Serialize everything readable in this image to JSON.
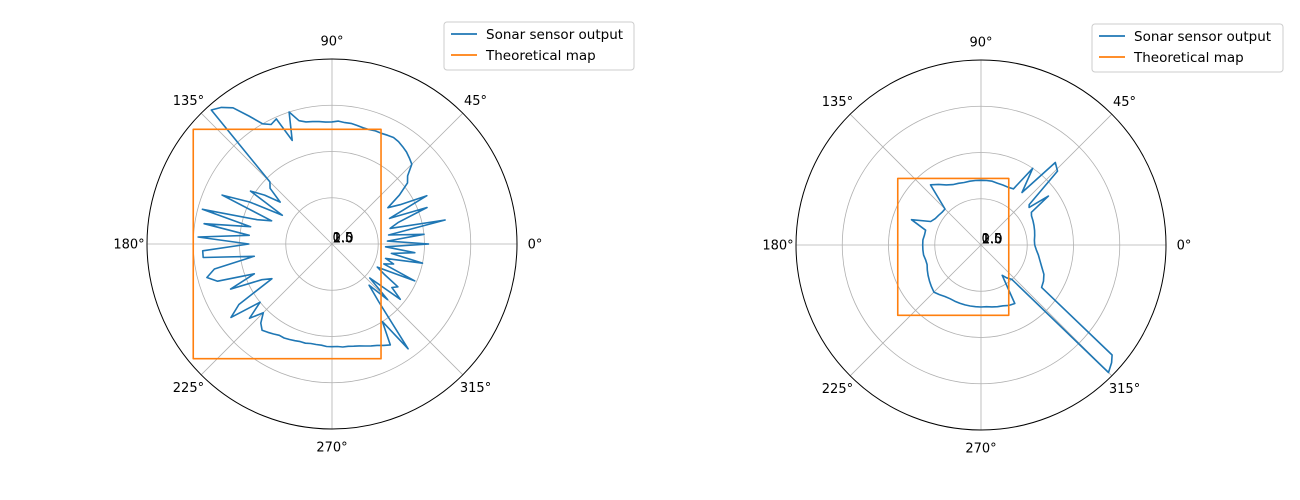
{
  "chart_data": [
    {
      "type": "polar-line",
      "title": "",
      "angle_ticks": [
        "0°",
        "45°",
        "90°",
        "135°",
        "180°",
        "225°",
        "270°",
        "315°"
      ],
      "angle_tick_degrees": [
        0,
        45,
        90,
        135,
        180,
        225,
        270,
        315
      ],
      "radial_tick_labels": [
        "0.5",
        "1.0",
        "1.5",
        "2.0"
      ],
      "rlim": [
        0,
        2.0
      ],
      "grid": true,
      "legend": "top-right",
      "series": [
        {
          "name": "Sonar sensor output",
          "color": "#1f77b4",
          "theta_deg": [
            0,
            3,
            6,
            9,
            12,
            15,
            18,
            21,
            24,
            27,
            30,
            33,
            36,
            39,
            42,
            45,
            48,
            51,
            54,
            57,
            60,
            63,
            66,
            69,
            72,
            75,
            78,
            81,
            84,
            87,
            90,
            93,
            96,
            99,
            102,
            105,
            108,
            111,
            114,
            117,
            120,
            123,
            126,
            129,
            132,
            135,
            138,
            141,
            144,
            147,
            150,
            153,
            156,
            159,
            162,
            165,
            168,
            171,
            174,
            177,
            180,
            183,
            186,
            189,
            192,
            195,
            198,
            201,
            204,
            207,
            210,
            213,
            216,
            219,
            222,
            225,
            228,
            231,
            234,
            237,
            240,
            243,
            246,
            249,
            252,
            255,
            258,
            261,
            264,
            267,
            270,
            273,
            276,
            279,
            282,
            285,
            288,
            291,
            294,
            297,
            300,
            303,
            306,
            309,
            312,
            315,
            318,
            321,
            324,
            327,
            330,
            333,
            336,
            339,
            342,
            345,
            348,
            351,
            354,
            357,
            360
          ],
          "r": [
            1.05,
            0.6,
            1.0,
            0.62,
            1.25,
            0.65,
            0.75,
            1.1,
            0.68,
            1.15,
            0.85,
            0.72,
            0.9,
            1.05,
            1.1,
            1.22,
            1.25,
            1.28,
            1.3,
            1.32,
            1.33,
            1.32,
            1.31,
            1.31,
            1.3,
            1.3,
            1.31,
            1.32,
            1.32,
            1.33,
            1.32,
            1.32,
            1.33,
            1.34,
            1.35,
            1.38,
            1.5,
            1.2,
            1.48,
            1.45,
            1.5,
            1.65,
            1.82,
            1.9,
            1.95,
            0.95,
            0.9,
            0.72,
            0.9,
            1.05,
            0.62,
            1.0,
            1.3,
            0.7,
            0.85,
            1.45,
            0.9,
            1.4,
            0.9,
            1.45,
            0.9,
            1.4,
            1.4,
            0.85,
            1.3,
            1.4,
            1.3,
            0.9,
            1.2,
            0.85,
            0.75,
            1.2,
            1.35,
            1.0,
            1.2,
            1.05,
            1.15,
            1.2,
            1.18,
            1.16,
            1.14,
            1.14,
            1.13,
            1.12,
            1.11,
            1.11,
            1.1,
            1.1,
            1.1,
            1.11,
            1.11,
            1.11,
            1.12,
            1.12,
            1.13,
            1.14,
            1.16,
            1.18,
            1.2,
            1.23,
            1.26,
            1.0,
            1.4,
            0.8,
            0.6,
            0.85,
            0.55,
            0.95,
            0.8,
            0.85,
            0.65,
            0.55,
            0.98,
            0.6,
            0.7,
            0.6,
            1.0,
            0.65,
            0.9,
            0.58,
            1.05
          ]
        },
        {
          "name": "Theoretical map",
          "color": "#ff7f0e",
          "rect": {
            "x_min": -1.5,
            "x_max": 0.53,
            "y_min": -1.24,
            "y_max": 1.24
          }
        }
      ]
    },
    {
      "type": "polar-line",
      "title": "",
      "angle_ticks": [
        "0°",
        "45°",
        "90°",
        "135°",
        "180°",
        "225°",
        "270°",
        "315°"
      ],
      "angle_tick_degrees": [
        0,
        45,
        90,
        135,
        180,
        225,
        270,
        315
      ],
      "radial_tick_labels": [
        "0.5",
        "1.0",
        "1.5",
        "2.0"
      ],
      "rlim": [
        0,
        2.0
      ],
      "grid": true,
      "legend": "top-right",
      "series": [
        {
          "name": "Sonar sensor output",
          "color": "#1f77b4",
          "theta_deg": [
            0,
            5,
            10,
            15,
            20,
            25,
            30,
            33,
            36,
            38,
            40,
            44,
            48,
            52,
            56,
            60,
            65,
            70,
            75,
            80,
            85,
            90,
            95,
            100,
            105,
            110,
            115,
            120,
            125,
            130,
            135,
            140,
            145,
            150,
            155,
            160,
            165,
            170,
            175,
            180,
            185,
            190,
            195,
            200,
            205,
            210,
            215,
            220,
            225,
            230,
            235,
            240,
            245,
            250,
            255,
            260,
            265,
            270,
            275,
            280,
            285,
            290,
            295,
            300,
            305,
            308,
            312,
            315,
            318,
            320,
            325,
            330,
            335,
            340,
            345,
            350,
            355,
            360
          ],
          "r": [
            0.58,
            0.58,
            0.59,
            0.6,
            0.61,
            0.62,
            0.63,
            0.65,
            0.9,
            0.66,
            0.68,
            1.15,
            1.2,
            0.72,
            1.0,
            0.7,
            0.69,
            0.69,
            0.69,
            0.7,
            0.7,
            0.7,
            0.7,
            0.7,
            0.7,
            0.71,
            0.72,
            0.75,
            0.8,
            0.85,
            0.55,
            0.55,
            0.56,
            0.57,
            0.6,
            0.8,
            0.62,
            0.62,
            0.63,
            0.63,
            0.63,
            0.63,
            0.62,
            0.62,
            0.64,
            0.66,
            0.68,
            0.7,
            0.72,
            0.7,
            0.68,
            0.67,
            0.67,
            0.67,
            0.67,
            0.67,
            0.67,
            0.67,
            0.67,
            0.68,
            0.69,
            0.7,
            0.72,
            0.73,
            0.4,
            0.45,
            0.5,
            1.95,
            1.9,
            1.85,
            0.8,
            0.78,
            0.75,
            0.7,
            0.66,
            0.63,
            0.6,
            0.58
          ]
        },
        {
          "name": "Theoretical map",
          "color": "#ff7f0e",
          "rect": {
            "x_min": -0.9,
            "x_max": 0.3,
            "y_min": -0.76,
            "y_max": 0.72
          }
        }
      ]
    }
  ]
}
